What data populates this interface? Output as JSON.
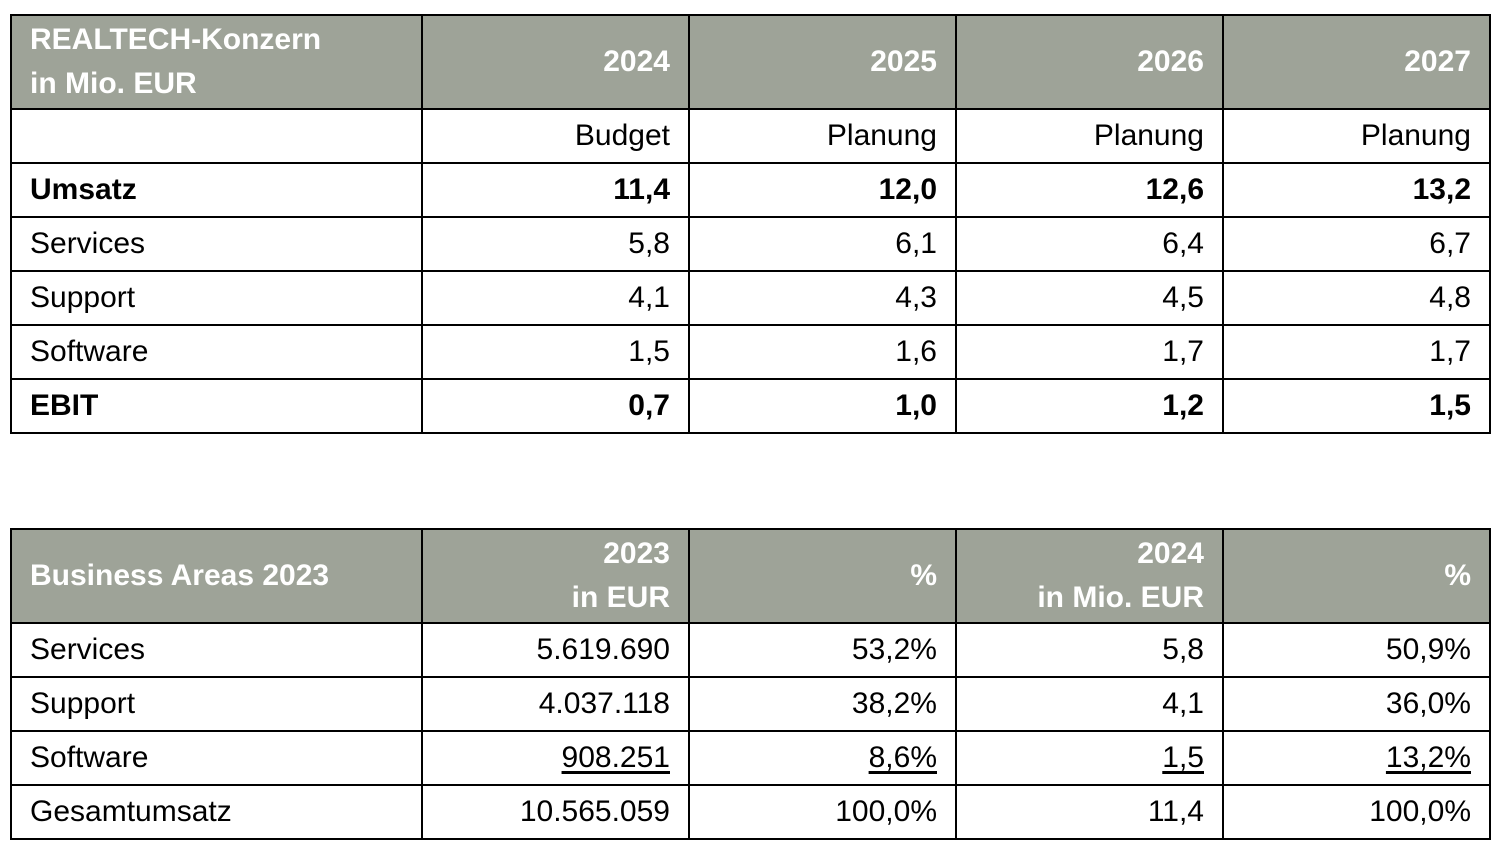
{
  "plan_table": {
    "header_title": [
      "REALTECH-Konzern",
      "in Mio. EUR"
    ],
    "years": [
      "2024",
      "2025",
      "2026",
      "2027"
    ],
    "subheader": [
      "",
      "Budget",
      "Planung",
      "Planung",
      "Planung"
    ],
    "rows": [
      {
        "label": "Umsatz",
        "values": [
          "11,4",
          "12,0",
          "12,6",
          "13,2"
        ],
        "bold": true
      },
      {
        "label": "Services",
        "values": [
          "5,8",
          "6,1",
          "6,4",
          "6,7"
        ],
        "bold": false
      },
      {
        "label": "Support",
        "values": [
          "4,1",
          "4,3",
          "4,5",
          "4,8"
        ],
        "bold": false
      },
      {
        "label": "Software",
        "values": [
          "1,5",
          "1,6",
          "1,7",
          "1,7"
        ],
        "bold": false
      },
      {
        "label": "EBIT",
        "values": [
          "0,7",
          "1,0",
          "1,2",
          "1,5"
        ],
        "bold": true
      }
    ]
  },
  "areas_table": {
    "header_title": "Business Areas 2023",
    "col1": [
      "2023",
      "in EUR"
    ],
    "col2": "%",
    "col3": [
      "2024",
      "in Mio. EUR"
    ],
    "col4": "%",
    "rows": [
      {
        "label": "Services",
        "values": [
          "5.619.690",
          "53,2%",
          "5,8",
          "50,9%"
        ],
        "underline": false
      },
      {
        "label": "Support",
        "values": [
          "4.037.118",
          "38,2%",
          "4,1",
          "36,0%"
        ],
        "underline": false
      },
      {
        "label": "Software",
        "values": [
          "908.251",
          "8,6%",
          "1,5",
          "13,2%"
        ],
        "underline": true
      },
      {
        "label": "Gesamtumsatz",
        "values": [
          "10.565.059",
          "100,0%",
          "11,4",
          "100,0%"
        ],
        "underline": false
      }
    ]
  }
}
